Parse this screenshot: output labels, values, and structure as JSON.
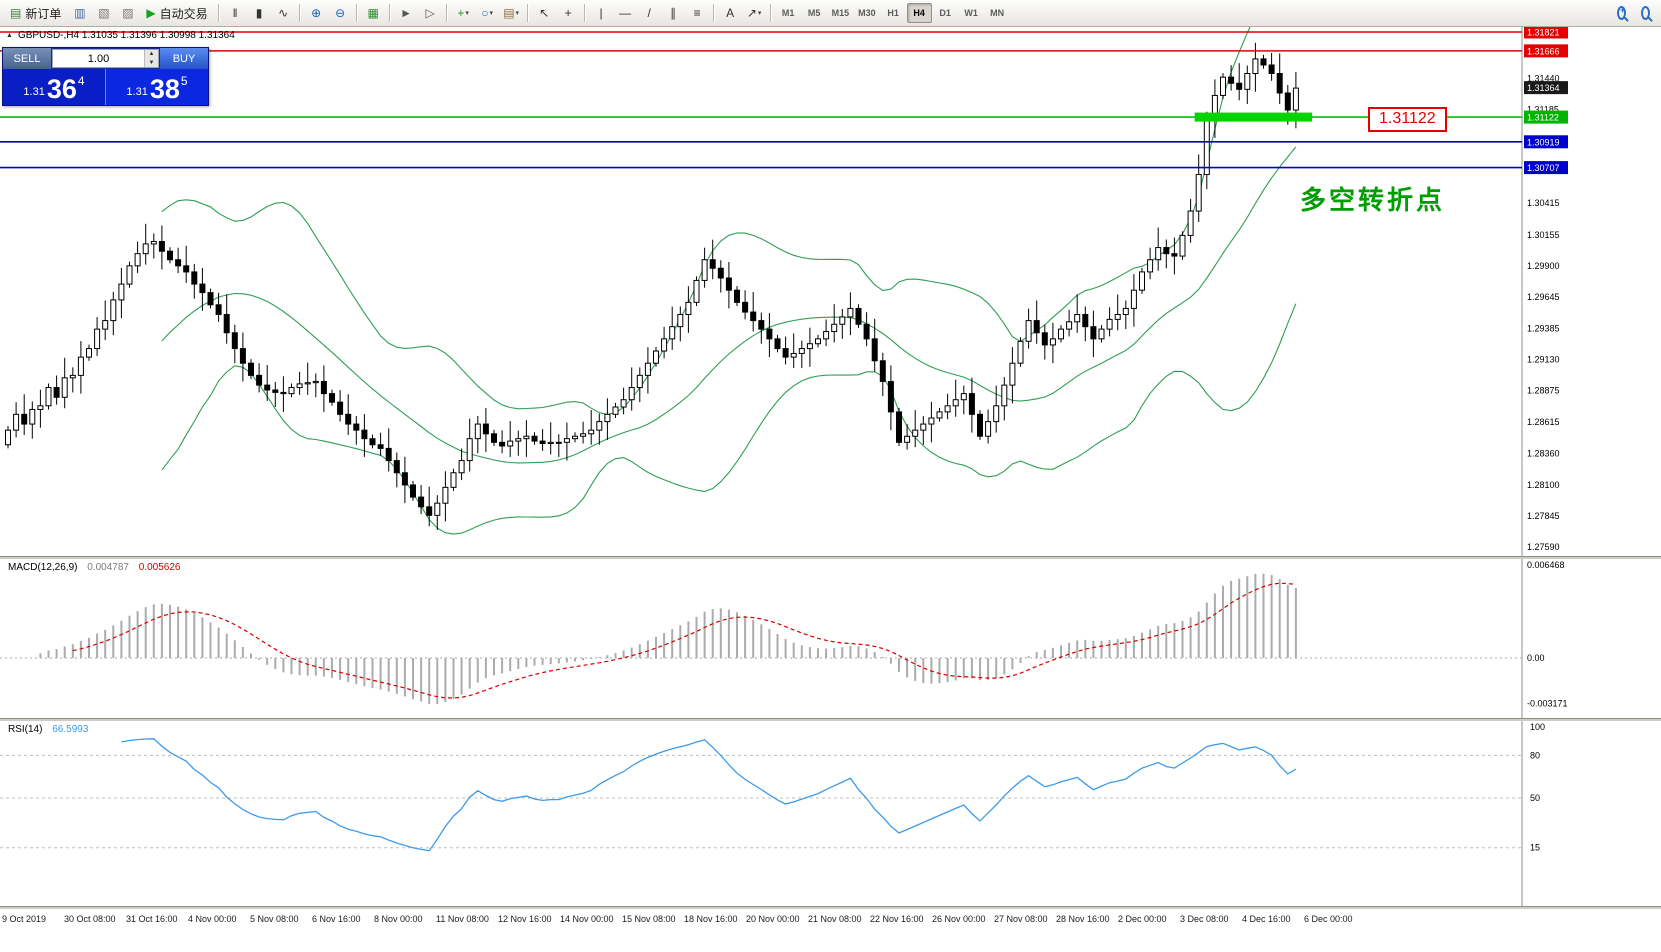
{
  "toolbar": {
    "active_timeframe": "H4",
    "items": [
      {
        "t": "btn",
        "name": "new-order-button",
        "g": "▤",
        "gc": "#3a7d3a",
        "label": "新订单"
      },
      {
        "t": "ico",
        "name": "market-watch-icon",
        "g": "▥",
        "gc": "#4a6a9a"
      },
      {
        "t": "ico",
        "name": "navigator-icon",
        "g": "▧",
        "gc": "#777777"
      },
      {
        "t": "ico",
        "name": "terminal-icon",
        "g": "▨",
        "gc": "#777777"
      },
      {
        "t": "btn",
        "name": "autotrade-button",
        "g": "▶",
        "gc": "#17a317",
        "label": "自动交易"
      },
      {
        "t": "sep"
      },
      {
        "t": "ico",
        "name": "bar-chart-icon",
        "g": "‖",
        "gc": "#333333"
      },
      {
        "t": "ico",
        "name": "candlestick-icon",
        "g": "▮",
        "gc": "#333333"
      },
      {
        "t": "ico",
        "name": "line-chart-icon",
        "g": "∿",
        "gc": "#333333"
      },
      {
        "t": "sep"
      },
      {
        "t": "ico",
        "name": "zoom-in-icon",
        "g": "⊕",
        "gc": "#1565c0"
      },
      {
        "t": "ico",
        "name": "zoom-out-icon",
        "g": "⊖",
        "gc": "#1565c0"
      },
      {
        "t": "sep"
      },
      {
        "t": "ico",
        "name": "tile-windows-icon",
        "g": "▦",
        "gc": "#2e8b2e"
      },
      {
        "t": "sep"
      },
      {
        "t": "ico",
        "name": "auto-scroll-icon",
        "g": "►",
        "gc": "#555555"
      },
      {
        "t": "ico",
        "name": "chart-shift-icon",
        "g": "▷",
        "gc": "#555555"
      },
      {
        "t": "sep"
      },
      {
        "t": "ico",
        "name": "indicators-icon",
        "g": "+",
        "gc": "#1f9d1f",
        "caret": true
      },
      {
        "t": "ico",
        "name": "periods-icon",
        "g": "○",
        "gc": "#1565c0",
        "caret": true
      },
      {
        "t": "ico",
        "name": "templates-icon",
        "g": "▤",
        "gc": "#8a6d3b",
        "caret": true
      },
      {
        "t": "sep"
      },
      {
        "t": "ico",
        "name": "cursor-icon",
        "g": "↖",
        "gc": "#333333"
      },
      {
        "t": "ico",
        "name": "crosshair-icon",
        "g": "+",
        "gc": "#333333"
      },
      {
        "t": "sep"
      },
      {
        "t": "ico",
        "name": "vertical-line-icon",
        "g": "|",
        "gc": "#333333"
      },
      {
        "t": "ico",
        "name": "horizontal-line-icon",
        "g": "—",
        "gc": "#333333"
      },
      {
        "t": "ico",
        "name": "trendline-icon",
        "g": "/",
        "gc": "#333333"
      },
      {
        "t": "ico",
        "name": "channel-icon",
        "g": "∥",
        "gc": "#333333"
      },
      {
        "t": "ico",
        "name": "fibonacci-icon",
        "g": "≡",
        "gc": "#333333"
      },
      {
        "t": "sep"
      },
      {
        "t": "ico",
        "name": "text-icon",
        "g": "A",
        "gc": "#333333"
      },
      {
        "t": "ico",
        "name": "arrows-icon",
        "g": "↗",
        "gc": "#333333",
        "caret": true
      },
      {
        "t": "sep"
      },
      {
        "t": "tf",
        "name": "tf-m1",
        "label": "M1"
      },
      {
        "t": "tf",
        "name": "tf-m5",
        "label": "M5"
      },
      {
        "t": "tf",
        "name": "tf-m15",
        "label": "M15"
      },
      {
        "t": "tf",
        "name": "tf-m30",
        "label": "M30"
      },
      {
        "t": "tf",
        "name": "tf-h1",
        "label": "H1"
      },
      {
        "t": "tf",
        "name": "tf-h4",
        "label": "H4"
      },
      {
        "t": "tf",
        "name": "tf-d1",
        "label": "D1"
      },
      {
        "t": "tf",
        "name": "tf-w1",
        "label": "W1"
      },
      {
        "t": "tf",
        "name": "tf-mn",
        "label": "MN"
      },
      {
        "t": "spring"
      },
      {
        "t": "mag",
        "name": "symbol-search-icon",
        "plus": true
      },
      {
        "t": "mag",
        "name": "find-icon",
        "plus": false
      }
    ]
  },
  "symbol_panel": {
    "header": "GBPUSD-,H4  1.31035 1.31396 1.30998 1.31364"
  },
  "trade_panel": {
    "sell_label": "SELL",
    "buy_label": "BUY",
    "volume": "1.00",
    "sell": {
      "prefix": "1.31",
      "big": "36",
      "sup": "4"
    },
    "buy": {
      "prefix": "1.31",
      "big": "38",
      "sup": "5"
    }
  },
  "chart_data": {
    "main": {
      "type": "candlestick",
      "symbol": "GBPUSD",
      "period": "H4",
      "ohlc_header": {
        "open": "1.31035",
        "high": "1.31396",
        "low": "1.30998",
        "close": "1.31364"
      },
      "y_range": [
        1.2759,
        1.31821
      ],
      "closes": [
        1.2855,
        1.2868,
        1.286,
        1.2872,
        1.2875,
        1.289,
        1.2882,
        1.2898,
        1.29,
        1.2915,
        1.2922,
        1.2938,
        1.2945,
        1.2962,
        1.2975,
        1.299,
        1.3,
        1.3008,
        1.301,
        1.3002,
        1.2995,
        1.299,
        1.2985,
        1.2975,
        1.2968,
        1.2958,
        1.295,
        1.2935,
        1.2922,
        1.291,
        1.29,
        1.2892,
        1.2888,
        1.2886,
        1.2885,
        1.289,
        1.2893,
        1.2894,
        1.2895,
        1.2885,
        1.2878,
        1.2868,
        1.286,
        1.2855,
        1.2848,
        1.2843,
        1.284,
        1.283,
        1.282,
        1.281,
        1.28,
        1.2792,
        1.2785,
        1.2795,
        1.2808,
        1.282,
        1.283,
        1.2848,
        1.286,
        1.2852,
        1.2845,
        1.2842,
        1.2846,
        1.2848,
        1.285,
        1.2846,
        1.2844,
        1.2845,
        1.2845,
        1.2848,
        1.285,
        1.2852,
        1.2855,
        1.2862,
        1.2868,
        1.2874,
        1.288,
        1.289,
        1.29,
        1.291,
        1.292,
        1.293,
        1.294,
        1.295,
        1.296,
        1.2978,
        1.2995,
        1.2988,
        1.298,
        1.297,
        1.296,
        1.2952,
        1.2945,
        1.2938,
        1.293,
        1.2922,
        1.2915,
        1.2918,
        1.2922,
        1.2926,
        1.293,
        1.2936,
        1.2942,
        1.2948,
        1.2955,
        1.2942,
        1.293,
        1.2912,
        1.2895,
        1.287,
        1.2845,
        1.285,
        1.2855,
        1.286,
        1.2865,
        1.287,
        1.2875,
        1.288,
        1.2885,
        1.2868,
        1.285,
        1.2862,
        1.2875,
        1.2892,
        1.291,
        1.2928,
        1.2945,
        1.2935,
        1.2925,
        1.293,
        1.2938,
        1.2944,
        1.295,
        1.294,
        1.293,
        1.2938,
        1.2946,
        1.295,
        1.2955,
        1.297,
        1.2985,
        1.2995,
        1.3005,
        1.3,
        1.2998,
        1.3015,
        1.3035,
        1.3065,
        1.311,
        1.313,
        1.3145,
        1.314,
        1.3135,
        1.3148,
        1.316,
        1.3155,
        1.3148,
        1.3132,
        1.3118,
        1.3136
      ],
      "bollinger": {
        "period": 20,
        "deviation": 2,
        "color": "#2f9e55"
      },
      "y_axis": {
        "tick_labels": [
          "1.31440",
          "1.31185",
          "1.30415",
          "1.30155",
          "1.29900",
          "1.29645",
          "1.29385",
          "1.29130",
          "1.28875",
          "1.28615",
          "1.28360",
          "1.28100",
          "1.27845",
          "1.27590"
        ]
      },
      "tags": [
        {
          "text": "1.31821",
          "value": 1.31821,
          "bg": "#e60000",
          "fg": "#ffffff"
        },
        {
          "text": "1.31666",
          "value": 1.31666,
          "bg": "#e60000",
          "fg": "#ffffff"
        },
        {
          "text": "1.31364",
          "value": 1.31364,
          "bg": "#1a1a1a",
          "fg": "#ffffff"
        },
        {
          "text": "1.31122",
          "value": 1.31122,
          "bg": "#00b400",
          "fg": "#ffffff"
        },
        {
          "text": "1.30919",
          "value": 1.30919,
          "bg": "#0000cc",
          "fg": "#ffffff"
        },
        {
          "text": "1.30707",
          "value": 1.30707,
          "bg": "#0000cc",
          "fg": "#ffffff"
        }
      ],
      "hlines": [
        {
          "price": 1.31821,
          "color": "#e60000",
          "width": 1.4
        },
        {
          "price": 1.31666,
          "color": "#e60000",
          "width": 1.4
        },
        {
          "price": 1.31122,
          "color": "#00c300",
          "width": 1.6
        },
        {
          "price": 1.30919,
          "color": "#0000c8",
          "width": 1.6
        },
        {
          "price": 1.30707,
          "color": "#0000c8",
          "width": 1.6
        }
      ],
      "highlight": {
        "price": 1.31122,
        "from_bar": 146.5,
        "to_bar": 161,
        "color": "#00d400"
      },
      "callout": {
        "text": "1.31122",
        "color": "#e60000"
      },
      "note": {
        "text": "多空转折点",
        "color": "#009e00"
      }
    },
    "macd": {
      "type": "macd",
      "label": "MACD(12,26,9)",
      "value_main": "0.004787",
      "value_signal": "0.005626",
      "params": [
        12,
        26,
        9
      ],
      "axis_labels": [
        "0.006468",
        "0.00",
        "-0.003171"
      ],
      "axis_values": [
        0.006468,
        0,
        -0.003171
      ],
      "hist_color": "#ababab",
      "signal_color": "#d40000"
    },
    "rsi": {
      "type": "rsi",
      "label": "RSI(14)",
      "value": "66.5993",
      "period": 14,
      "levels": [
        80,
        50,
        15
      ],
      "axis_labels": [
        "100",
        "80",
        "50",
        "15"
      ],
      "axis_values": [
        100,
        80,
        50,
        15
      ],
      "color": "#3d9be9"
    }
  },
  "time_axis": {
    "labels": [
      "9 Oct 2019",
      "30 Oct 08:00",
      "31 Oct 16:00",
      "4 Nov 00:00",
      "5 Nov 08:00",
      "6 Nov 16:00",
      "8 Nov 00:00",
      "11 Nov 08:00",
      "12 Nov 16:00",
      "14 Nov 00:00",
      "15 Nov 08:00",
      "18 Nov 16:00",
      "20 Nov 00:00",
      "21 Nov 08:00",
      "22 Nov 16:00",
      "26 Nov 00:00",
      "27 Nov 08:00",
      "28 Nov 16:00",
      "2 Dec 00:00",
      "3 Dec 08:00",
      "4 Dec 16:00",
      "6 Dec 00:00"
    ]
  }
}
